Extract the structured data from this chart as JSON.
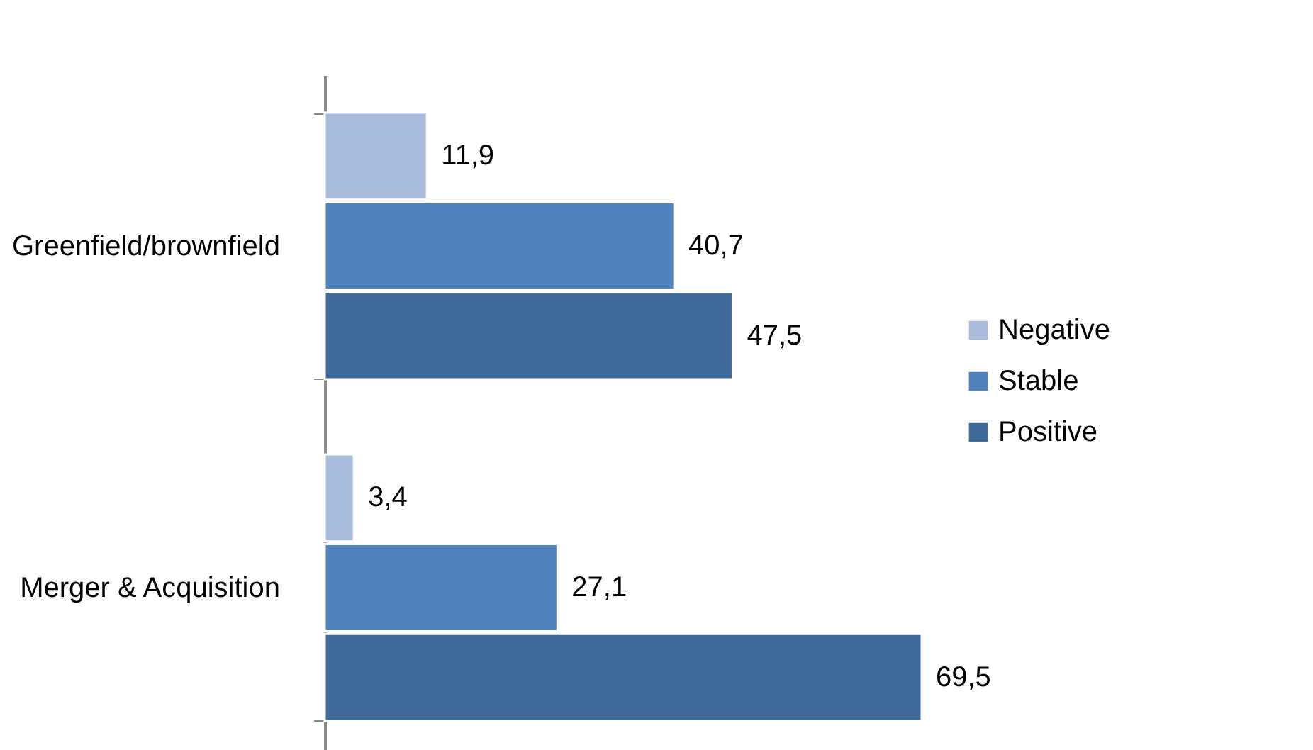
{
  "chart_data": {
    "type": "bar",
    "orientation": "horizontal",
    "legend": "right",
    "categories": [
      "Greenfield/brownfield",
      "Merger & Acquisition"
    ],
    "series": [
      {
        "name": "Negative",
        "color": "#a9bcdc",
        "values": [
          11.9,
          3.4
        ],
        "value_labels": [
          "11,9",
          "3,4"
        ]
      },
      {
        "name": "Stable",
        "color": "#4f81bd",
        "values": [
          40.7,
          27.1
        ],
        "value_labels": [
          "40,7",
          "27,1"
        ]
      },
      {
        "name": "Positive",
        "color": "#3f6a9c",
        "values": [
          47.5,
          69.5
        ],
        "value_labels": [
          "47,5",
          "69,5"
        ]
      }
    ]
  }
}
